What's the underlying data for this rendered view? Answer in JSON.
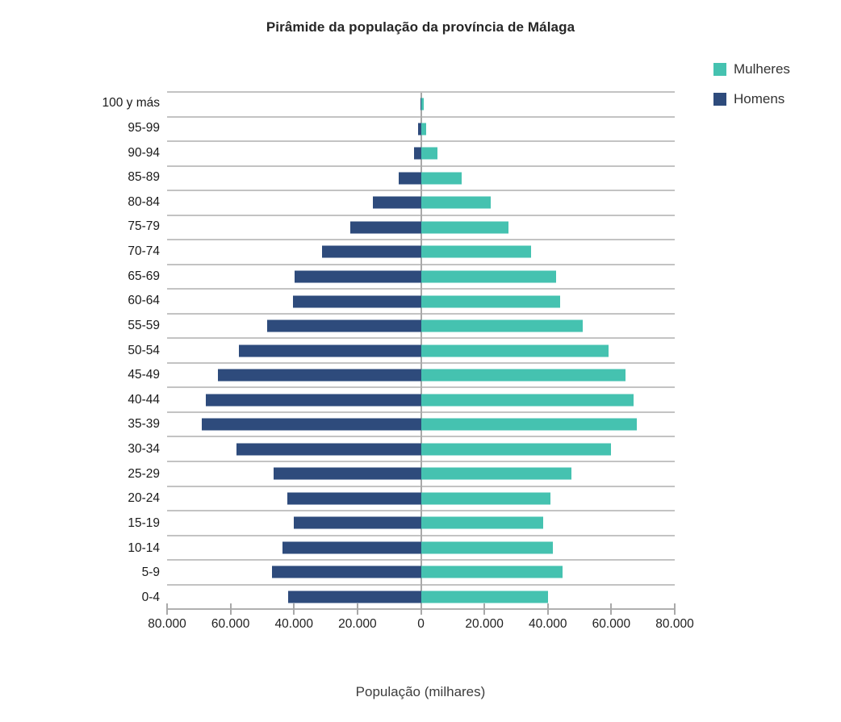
{
  "title": "Pirâmide da população da província de Málaga",
  "legend": {
    "items": [
      {
        "label": "Mulheres",
        "color": "#45C2B0"
      },
      {
        "label": "Homens",
        "color": "#2E4B7C"
      }
    ]
  },
  "x_axis_title": "População (milhares)",
  "colors": {
    "mulheres": "#45C2B0",
    "homens": "#2E4B7C",
    "gridline": "#C3C3C3",
    "axis_line": "#A9A9A9"
  },
  "chart_data": {
    "type": "bar",
    "subtype": "population-pyramid",
    "orientation": "horizontal",
    "title": "Pirâmide da população da província de Málaga",
    "xlabel": "População (milhares)",
    "ylabel": "",
    "categories": [
      "100 y más",
      "95-99",
      "90-94",
      "85-89",
      "80-84",
      "75-79",
      "70-74",
      "65-69",
      "60-64",
      "55-59",
      "50-54",
      "45-49",
      "40-44",
      "35-39",
      "30-34",
      "25-29",
      "20-24",
      "15-19",
      "10-14",
      "5-9",
      "0-4"
    ],
    "series": [
      {
        "name": "Homens",
        "side": "left",
        "color": "#2E4B7C",
        "values": [
          250,
          800,
          2200,
          6900,
          15200,
          22200,
          31200,
          39700,
          40200,
          48400,
          57400,
          64100,
          67900,
          69000,
          58200,
          46500,
          42100,
          40000,
          43700,
          46900,
          41800
        ]
      },
      {
        "name": "Mulheres",
        "side": "right",
        "color": "#45C2B0",
        "values": [
          900,
          1600,
          5200,
          12800,
          22000,
          27700,
          34800,
          42500,
          43800,
          51000,
          59200,
          64500,
          66900,
          68100,
          59800,
          47500,
          40800,
          38500,
          41500,
          44600,
          40000
        ]
      }
    ],
    "xlim": [
      -80000,
      80000
    ],
    "x_ticks": [
      -80000,
      -60000,
      -40000,
      -20000,
      0,
      20000,
      40000,
      60000,
      80000
    ],
    "x_tick_labels": [
      "80.000",
      "60.000",
      "40.000",
      "20.000",
      "0",
      "20.000",
      "40.000",
      "60.000",
      "80.000"
    ],
    "grid": "horizontal",
    "legend_position": "top-right"
  }
}
